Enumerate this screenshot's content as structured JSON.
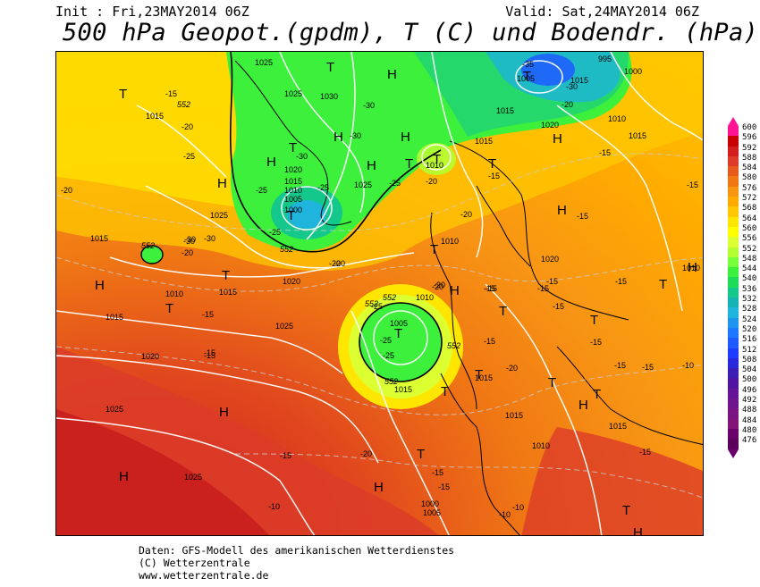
{
  "header": {
    "init": "Init : Fri,23MAY2014 06Z",
    "valid": "Valid: Sat,24MAY2014 06Z",
    "title": "500 hPa Geopot.(gpdm), T (C) und Bodendr. (hPa)"
  },
  "legend": {
    "levels": [
      "600",
      "596",
      "592",
      "588",
      "584",
      "580",
      "576",
      "572",
      "568",
      "564",
      "560",
      "556",
      "552",
      "548",
      "544",
      "540",
      "536",
      "532",
      "528",
      "524",
      "520",
      "516",
      "512",
      "508",
      "504",
      "500",
      "496",
      "492",
      "488",
      "484",
      "480",
      "476"
    ],
    "colors": [
      "#ff1493",
      "#c80000",
      "#d21e1e",
      "#dc3c28",
      "#e65a1e",
      "#f07814",
      "#f89614",
      "#ffaa00",
      "#ffc800",
      "#ffe600",
      "#ffff00",
      "#dcff32",
      "#b4ff32",
      "#78ff3c",
      "#3cf03c",
      "#1edc5a",
      "#14c88c",
      "#14b4b4",
      "#1eb4dc",
      "#1e96f0",
      "#1e78ff",
      "#1e5aff",
      "#1e3cff",
      "#2828dc",
      "#3c1eb4",
      "#5014a0",
      "#641496",
      "#6e148c",
      "#7a1482",
      "#821478",
      "#6a006a",
      "#5a005a"
    ]
  },
  "map": {
    "pressure_systems": [
      {
        "label": "H"
      },
      {
        "label": "H"
      },
      {
        "label": "H"
      },
      {
        "label": "H"
      },
      {
        "label": "H"
      },
      {
        "label": "H"
      },
      {
        "label": "H"
      },
      {
        "label": "H"
      },
      {
        "label": "H"
      },
      {
        "label": "H"
      },
      {
        "label": "H"
      },
      {
        "label": "H"
      },
      {
        "label": "H"
      },
      {
        "label": "H"
      },
      {
        "label": "H"
      },
      {
        "label": "H"
      },
      {
        "label": "T"
      },
      {
        "label": "T"
      },
      {
        "label": "T"
      },
      {
        "label": "T"
      },
      {
        "label": "T"
      },
      {
        "label": "T"
      },
      {
        "label": "T"
      },
      {
        "label": "T"
      },
      {
        "label": "T"
      },
      {
        "label": "T"
      },
      {
        "label": "T"
      },
      {
        "label": "T"
      },
      {
        "label": "T"
      },
      {
        "label": "T"
      },
      {
        "label": "T"
      },
      {
        "label": "T"
      },
      {
        "label": "T"
      },
      {
        "label": "T"
      },
      {
        "label": "T"
      },
      {
        "label": "T"
      },
      {
        "label": "T"
      }
    ],
    "isobar_labels": [
      "1025",
      "1030",
      "1025",
      "1015",
      "1020",
      "1015",
      "1010",
      "1005",
      "1000",
      "1025",
      "1010",
      "1015",
      "1020",
      "1005",
      "1000",
      "995",
      "1010",
      "1015",
      "1015",
      "1025",
      "1015",
      "1010",
      "1015",
      "1020",
      "1025",
      "1020",
      "1025",
      "1010",
      "1005",
      "1015",
      "1015",
      "1010",
      "1025",
      "1015",
      "1010",
      "1015",
      "1015",
      "1005",
      "1000",
      "1010",
      "1020",
      "1015"
    ],
    "temp_labels": [
      "-15",
      "-20",
      "-25",
      "-20",
      "-25",
      "-30",
      "-25",
      "-30",
      "-30",
      "-25",
      "-30",
      "-30",
      "-35",
      "-30",
      "-20",
      "-15",
      "-15",
      "-25",
      "-20",
      "-15",
      "-15",
      "-20",
      "-15",
      "-15",
      "-15",
      "-20",
      "-15",
      "-15",
      "-15",
      "-20",
      "-15",
      "-15",
      "-20",
      "-15",
      "-15",
      "-10",
      "-10",
      "-15",
      "-15",
      "-10",
      "-15",
      "-15",
      "-15",
      "-20",
      "-20",
      "-25",
      "-15",
      "-30",
      "-20",
      "-15",
      "-25",
      "-25",
      "-20",
      "-10"
    ],
    "geopot_labels": [
      "552",
      "552",
      "552",
      "552",
      "552",
      "552",
      "552"
    ]
  },
  "footer": {
    "line1": "Daten: GFS-Modell des amerikanischen Wetterdienstes",
    "line2": "(C) Wetterzentrale",
    "line3": "www.wetterzentrale.de"
  }
}
